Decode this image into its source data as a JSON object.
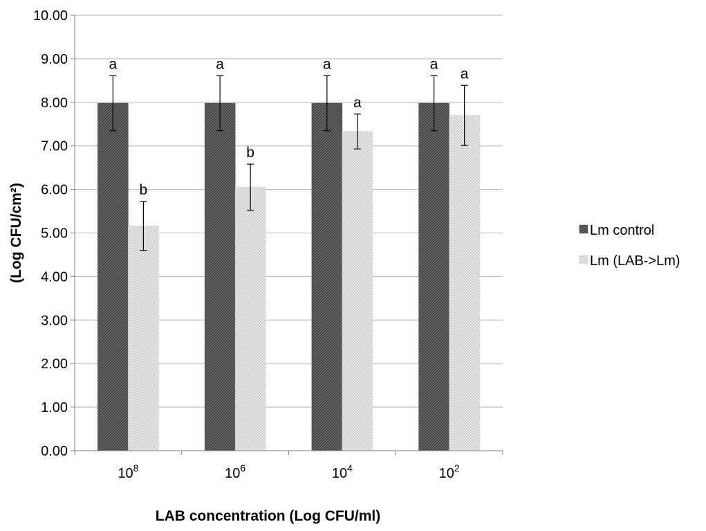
{
  "chart_data": {
    "type": "bar",
    "title": "",
    "xlabel": "LAB concentration (Log CFU/ml)",
    "ylabel": "(Log CFU/cm²)",
    "ylim": [
      0,
      10
    ],
    "ytick_step": 1,
    "ytick_labels": [
      "0.00",
      "1.00",
      "2.00",
      "3.00",
      "4.00",
      "5.00",
      "6.00",
      "7.00",
      "8.00",
      "9.00",
      "10.00"
    ],
    "grid": true,
    "legend_position": "right",
    "categories": [
      {
        "base": "10",
        "exp": "8"
      },
      {
        "base": "10",
        "exp": "6"
      },
      {
        "base": "10",
        "exp": "4"
      },
      {
        "base": "10",
        "exp": "2"
      }
    ],
    "series": [
      {
        "name": "Lm control",
        "pattern": "dark-hatch",
        "color": "#555555",
        "values": [
          7.98,
          7.98,
          7.98,
          7.98
        ],
        "errors": [
          0.63,
          0.63,
          0.63,
          0.63
        ],
        "labels": [
          "a",
          "a",
          "a",
          "a"
        ]
      },
      {
        "name": "Lm (LAB->Lm)",
        "pattern": "light-dots",
        "color": "#d9d9d9",
        "values": [
          5.16,
          6.05,
          7.33,
          7.7
        ],
        "errors": [
          0.56,
          0.53,
          0.4,
          0.69
        ],
        "labels": [
          "b",
          "b",
          "a",
          "a"
        ]
      }
    ]
  }
}
